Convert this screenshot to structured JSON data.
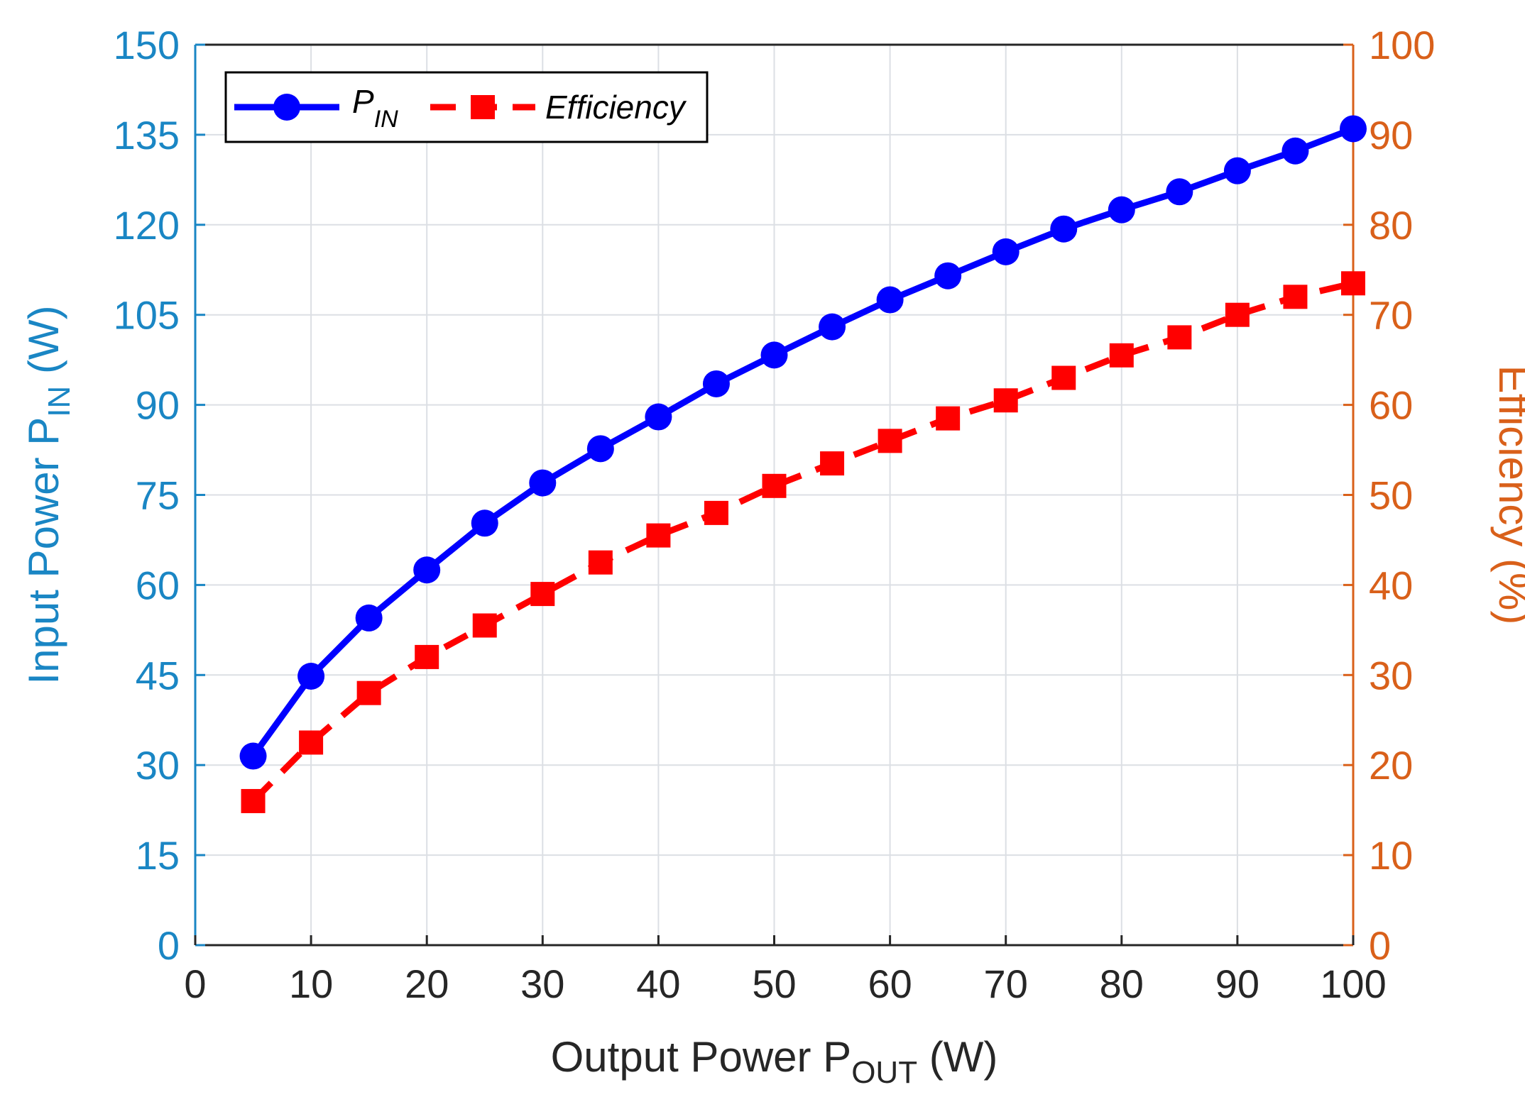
{
  "chart_data": {
    "type": "line",
    "xlabel": {
      "main": "Output Power P",
      "sub": "OUT",
      "unit": " (W)"
    },
    "ylabel_left": {
      "main": "Input Power P",
      "sub": "IN",
      "unit": " (W)"
    },
    "ylabel_right": "Efficiency (%)",
    "xlim": [
      0,
      100
    ],
    "ylim_left": [
      0,
      150
    ],
    "ylim_right": [
      0,
      100
    ],
    "xticks": [
      0,
      10,
      20,
      30,
      40,
      50,
      60,
      70,
      80,
      90,
      100
    ],
    "yticks_left": [
      0,
      15,
      30,
      45,
      60,
      75,
      90,
      105,
      120,
      135,
      150
    ],
    "yticks_right": [
      0,
      10,
      20,
      30,
      40,
      50,
      60,
      70,
      80,
      90,
      100
    ],
    "grid": true,
    "legend_position": "top-left",
    "x": [
      5,
      10,
      15,
      20,
      25,
      30,
      35,
      40,
      45,
      50,
      55,
      60,
      65,
      70,
      75,
      80,
      85,
      90,
      95,
      100
    ],
    "series": [
      {
        "name": "P",
        "name_sub": "IN",
        "axis": "left",
        "color": "#0000ff",
        "marker": "circle",
        "linestyle": "solid",
        "values": [
          31.5,
          44.8,
          54.5,
          62.5,
          70.3,
          77.0,
          82.7,
          88.0,
          93.5,
          98.3,
          103.0,
          107.5,
          111.5,
          115.5,
          119.3,
          122.5,
          125.5,
          129.0,
          132.3,
          136.0
        ]
      },
      {
        "name": "Efficiency",
        "name_sub": "",
        "axis": "right",
        "color": "#ff0000",
        "marker": "square",
        "linestyle": "dashed",
        "values": [
          16.0,
          22.5,
          28.0,
          32.0,
          35.5,
          39.0,
          42.5,
          45.5,
          48.0,
          51.0,
          53.5,
          56.0,
          58.5,
          60.5,
          63.0,
          65.5,
          67.5,
          70.0,
          72.0,
          73.5
        ]
      }
    ]
  },
  "colors": {
    "left_axis": "#1a86c4",
    "right_axis": "#d9601a",
    "x_axis": "#262626"
  }
}
